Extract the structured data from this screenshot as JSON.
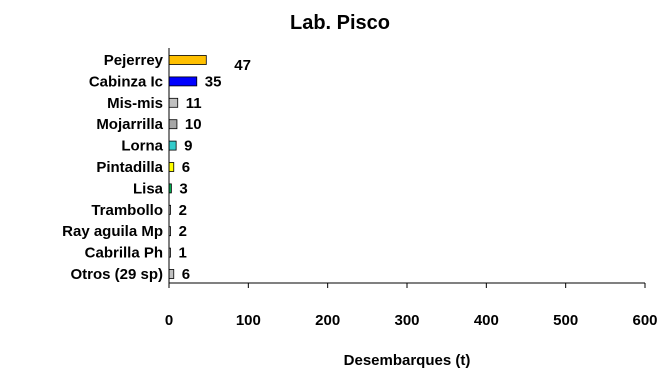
{
  "chart_data": {
    "type": "bar",
    "orientation": "horizontal",
    "title": "Lab. Pisco",
    "xlabel": "Desembarques (t)",
    "ylabel": "",
    "xlim": [
      0,
      600
    ],
    "xticks": [
      0,
      100,
      200,
      300,
      400,
      500,
      600
    ],
    "grid": false,
    "categories": [
      "Pejerrey",
      "Cabinza Ic",
      "Mis-mis",
      "Mojarrilla",
      "Lorna",
      "Pintadilla",
      "Lisa",
      "Trambollo",
      "Ray aguila Mp",
      "Cabrilla Ph",
      "Otros (29 sp)"
    ],
    "values": [
      47,
      35,
      11,
      10,
      9,
      6,
      3,
      2,
      2,
      1,
      6
    ],
    "data_labels": [
      "47",
      "35",
      "11",
      "10",
      "9",
      "6",
      "3",
      "2",
      "2",
      "1",
      "6"
    ],
    "colors": [
      "#FFC000",
      "#0000FF",
      "#C0C0C0",
      "#A6A6A6",
      "#33CCCC",
      "#FFFF00",
      "#00B050",
      "#D9D9D9",
      "#D9D9D9",
      "#BFBFBF",
      "#C0C0C0"
    ]
  }
}
